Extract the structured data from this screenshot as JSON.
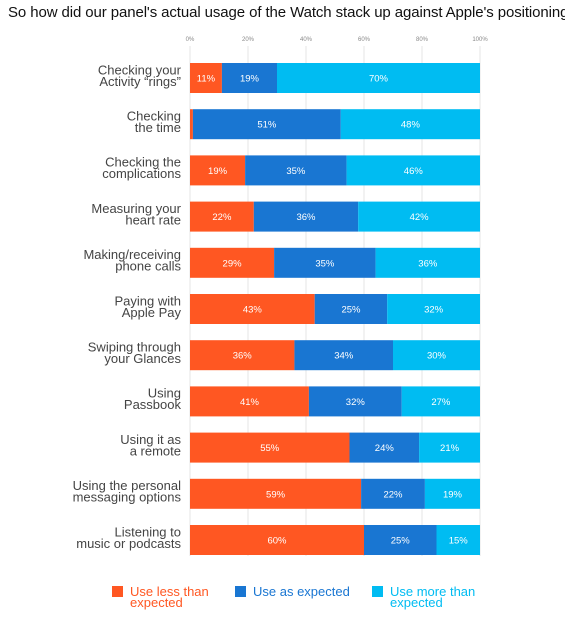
{
  "title": "So how did our panel's actual usage of the Watch stack up against Apple's positioning?",
  "chart_data": {
    "type": "bar",
    "orientation": "horizontal",
    "stacked": true,
    "percent_stacked": true,
    "title": "",
    "xlim": [
      0,
      100
    ],
    "x_ticks": [
      "0%",
      "20%",
      "40%",
      "60%",
      "80%",
      "100%"
    ],
    "categories": [
      [
        "Checking your",
        "Activity “rings”"
      ],
      [
        "Checking",
        "the time"
      ],
      [
        "Checking the",
        "complications"
      ],
      [
        "Measuring your",
        "heart rate"
      ],
      [
        "Making/receiving",
        "phone calls"
      ],
      [
        "Paying with",
        "Apple Pay"
      ],
      [
        "Swiping through",
        "your Glances"
      ],
      [
        "Using",
        "Passbook"
      ],
      [
        "Using it as",
        "a remote"
      ],
      [
        "Using the personal",
        "messaging options"
      ],
      [
        "Listening to",
        "music or podcasts"
      ]
    ],
    "series": [
      {
        "name": "Use less than expected",
        "color": "#FF5722",
        "values": [
          11,
          1,
          19,
          22,
          29,
          43,
          36,
          41,
          55,
          59,
          60
        ],
        "labels": [
          "11%",
          "",
          "19%",
          "22%",
          "29%",
          "43%",
          "36%",
          "41%",
          "55%",
          "59%",
          "60%"
        ]
      },
      {
        "name": "Use as expected",
        "color": "#1976D2",
        "values": [
          19,
          51,
          35,
          36,
          35,
          25,
          34,
          32,
          24,
          22,
          25
        ],
        "labels": [
          "19%",
          "51%",
          "35%",
          "36%",
          "35%",
          "25%",
          "34%",
          "32%",
          "24%",
          "22%",
          "25%"
        ]
      },
      {
        "name": "Use more than expected",
        "color": "#00BCF2",
        "values": [
          70,
          48,
          46,
          42,
          36,
          32,
          30,
          27,
          21,
          19,
          15
        ],
        "labels": [
          "70%",
          "48%",
          "46%",
          "42%",
          "36%",
          "32%",
          "30%",
          "27%",
          "21%",
          "19%",
          "15%"
        ]
      }
    ],
    "legend": {
      "position": "bottom",
      "items": [
        {
          "lines": [
            "Use less than",
            "expected"
          ],
          "color": "#FF5722"
        },
        {
          "lines": [
            "Use as expected"
          ],
          "color": "#1976D2"
        },
        {
          "lines": [
            "Use more than",
            "expected"
          ],
          "color": "#00BCF2"
        }
      ]
    },
    "grid": true
  }
}
